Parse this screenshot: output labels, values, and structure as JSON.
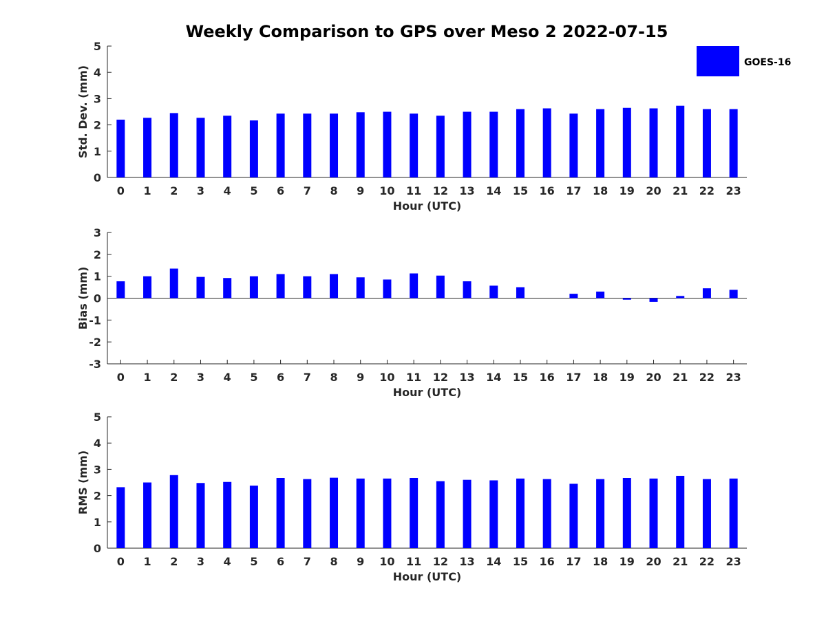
{
  "title": "Weekly Comparison to GPS over Meso 2 2022-07-15",
  "legend": {
    "label": "GOES-16",
    "color": "#0000ff"
  },
  "bar_color": "#0000ff",
  "chart_data": [
    {
      "type": "bar",
      "name": "std-dev",
      "categories": [
        "0",
        "1",
        "2",
        "3",
        "4",
        "5",
        "6",
        "7",
        "8",
        "9",
        "10",
        "11",
        "12",
        "13",
        "14",
        "15",
        "16",
        "17",
        "18",
        "19",
        "20",
        "21",
        "22",
        "23"
      ],
      "series": [
        {
          "name": "GOES-16",
          "values": [
            2.2,
            2.27,
            2.45,
            2.27,
            2.35,
            2.17,
            2.43,
            2.43,
            2.43,
            2.48,
            2.5,
            2.43,
            2.35,
            2.5,
            2.5,
            2.6,
            2.63,
            2.43,
            2.6,
            2.65,
            2.63,
            2.73,
            2.6,
            2.6
          ]
        }
      ],
      "xlabel": "Hour (UTC)",
      "ylabel": "Std. Dev. (mm)",
      "ylim": [
        0,
        5
      ],
      "yticks": [
        "0",
        "1",
        "2",
        "3",
        "4",
        "5"
      ]
    },
    {
      "type": "bar",
      "name": "bias",
      "categories": [
        "0",
        "1",
        "2",
        "3",
        "4",
        "5",
        "6",
        "7",
        "8",
        "9",
        "10",
        "11",
        "12",
        "13",
        "14",
        "15",
        "16",
        "17",
        "18",
        "19",
        "20",
        "21",
        "22",
        "23"
      ],
      "series": [
        {
          "name": "GOES-16",
          "values": [
            0.77,
            1.0,
            1.35,
            0.97,
            0.92,
            1.0,
            1.1,
            1.0,
            1.1,
            0.95,
            0.85,
            1.13,
            1.03,
            0.77,
            0.57,
            0.5,
            0.0,
            0.2,
            0.3,
            -0.07,
            -0.17,
            0.1,
            0.45,
            0.38
          ]
        }
      ],
      "xlabel": "Hour (UTC)",
      "ylabel": "Bias (mm)",
      "ylim": [
        -3,
        3
      ],
      "yticks": [
        "-3",
        "-2",
        "-1",
        "0",
        "1",
        "2",
        "3"
      ]
    },
    {
      "type": "bar",
      "name": "rms",
      "categories": [
        "0",
        "1",
        "2",
        "3",
        "4",
        "5",
        "6",
        "7",
        "8",
        "9",
        "10",
        "11",
        "12",
        "13",
        "14",
        "15",
        "16",
        "17",
        "18",
        "19",
        "20",
        "21",
        "22",
        "23"
      ],
      "series": [
        {
          "name": "GOES-16",
          "values": [
            2.32,
            2.5,
            2.78,
            2.48,
            2.52,
            2.38,
            2.67,
            2.63,
            2.68,
            2.65,
            2.65,
            2.67,
            2.55,
            2.6,
            2.58,
            2.65,
            2.63,
            2.45,
            2.63,
            2.67,
            2.65,
            2.75,
            2.63,
            2.65
          ]
        }
      ],
      "xlabel": "Hour (UTC)",
      "ylabel": "RMS (mm)",
      "ylim": [
        0,
        5
      ],
      "yticks": [
        "0",
        "1",
        "2",
        "3",
        "4",
        "5"
      ]
    }
  ]
}
